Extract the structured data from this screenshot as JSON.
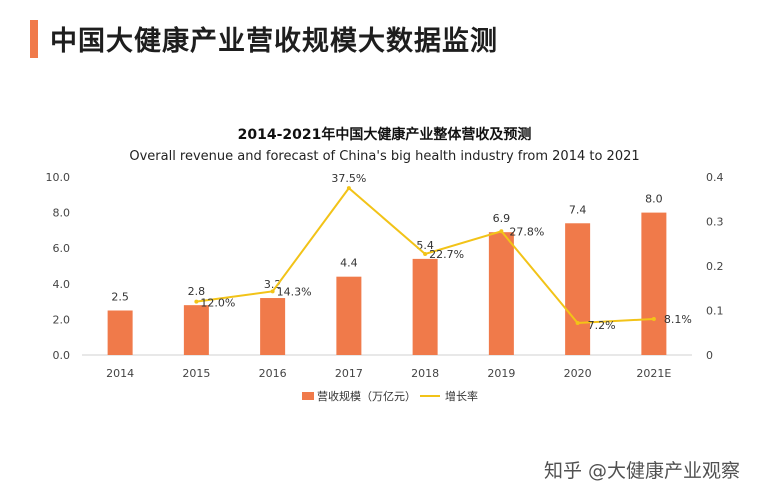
{
  "header": {
    "title": "中国大健康产业营收规模大数据监测"
  },
  "chart_data": {
    "type": "bar",
    "title": "2014-2021年中国大健康产业整体营收及预测",
    "subtitle": "Overall revenue and forecast of China's big health industry from 2014 to 2021",
    "categories": [
      "2014",
      "2015",
      "2016",
      "2017",
      "2018",
      "2019",
      "2020",
      "2021E"
    ],
    "series": [
      {
        "name": "营收规模（万亿元）",
        "type": "bar",
        "axis": "left",
        "color": "#f07a4a",
        "values": [
          2.5,
          2.8,
          3.2,
          4.4,
          5.4,
          6.9,
          7.4,
          8.0
        ],
        "labels": [
          "2.5",
          "2.8",
          "3.2",
          "4.4",
          "5.4",
          "6.9",
          "7.4",
          "8.0"
        ]
      },
      {
        "name": "增长率",
        "type": "line",
        "axis": "right",
        "color": "#f2c318",
        "values": [
          null,
          0.12,
          0.143,
          0.375,
          0.227,
          0.278,
          0.072,
          0.081
        ],
        "labels": [
          null,
          "12.0%",
          "14.3%",
          "37.5%",
          "22.7%",
          "27.8%",
          "7.2%",
          "8.1%"
        ]
      }
    ],
    "left_axis": {
      "ylim": [
        0,
        10
      ],
      "ticks": [
        "0.0",
        "2.0",
        "4.0",
        "6.0",
        "8.0",
        "10.0"
      ]
    },
    "right_axis": {
      "ylim": [
        0,
        0.4
      ],
      "ticks": [
        "0",
        "0.1",
        "0.2",
        "0.3",
        "0.4"
      ]
    },
    "grid": false,
    "legend": "bottom-center"
  },
  "watermark": "知乎 @大健康产业观察"
}
